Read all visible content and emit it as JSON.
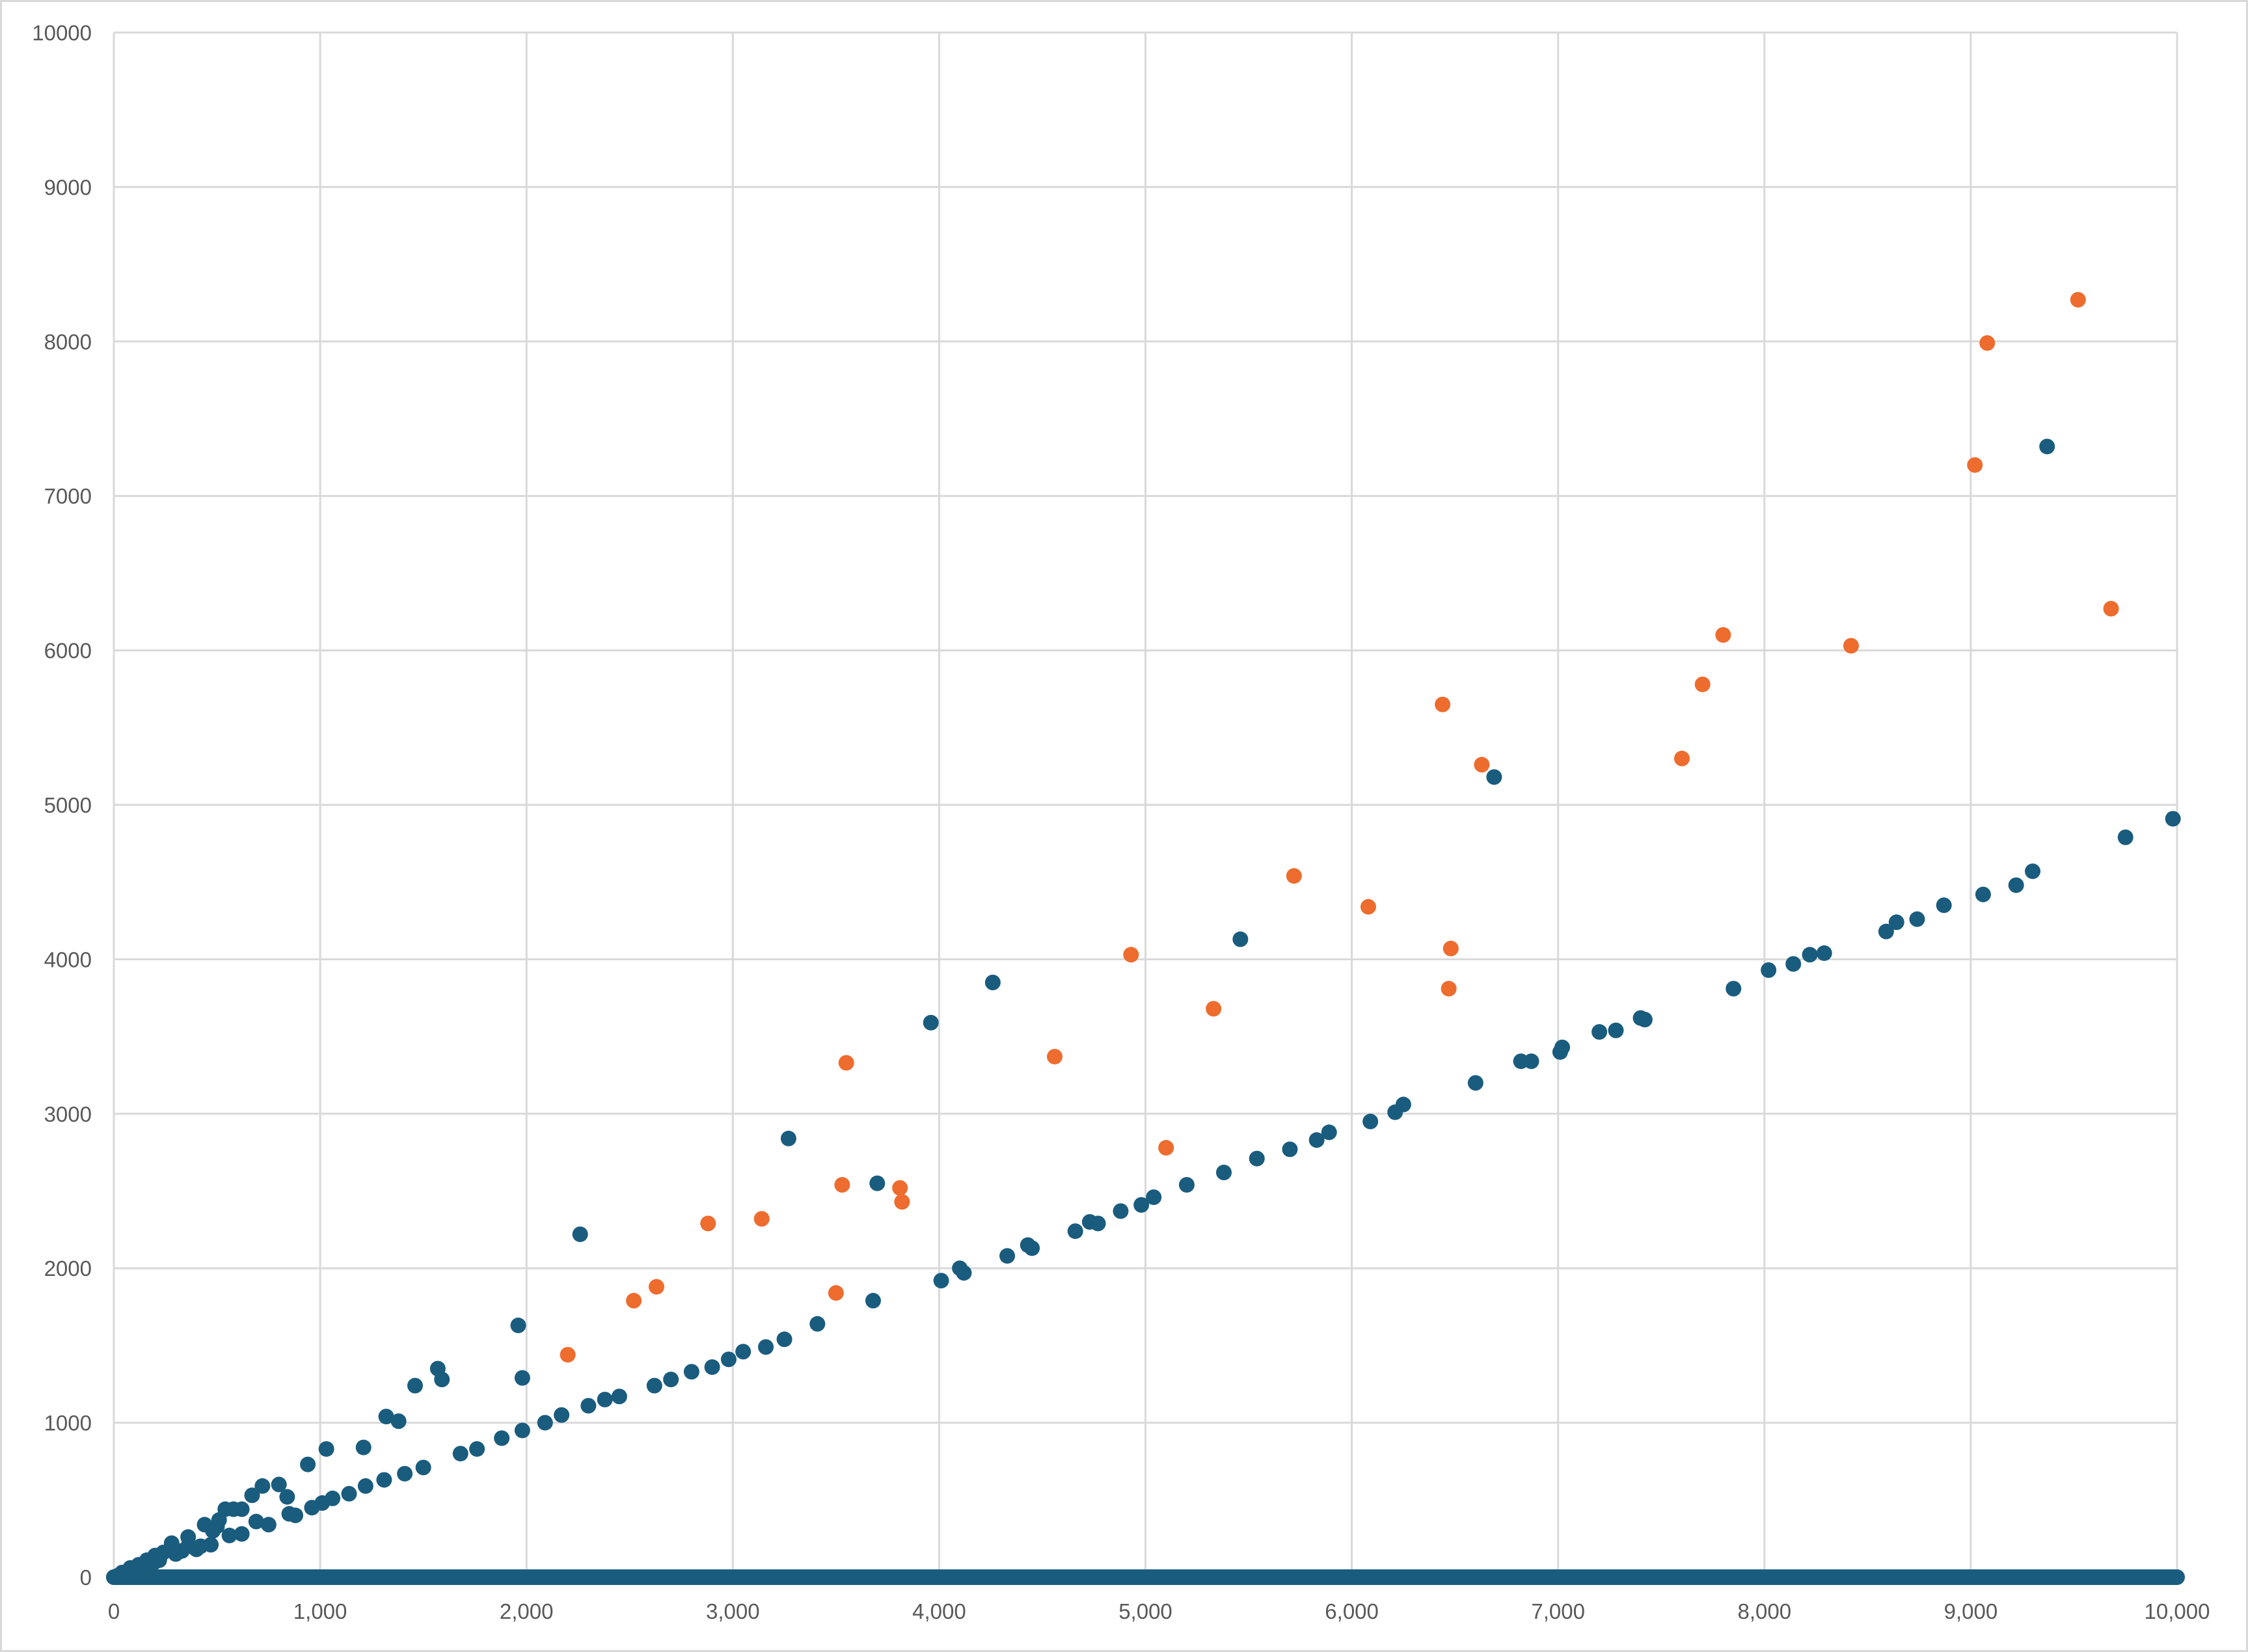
{
  "chart_data": {
    "type": "scatter",
    "title": "",
    "xlabel": "",
    "ylabel": "",
    "xlim": [
      0,
      10000
    ],
    "ylim": [
      0,
      10000
    ],
    "x_ticks": [
      "0",
      "1,000",
      "2,000",
      "3,000",
      "4,000",
      "5,000",
      "6,000",
      "7,000",
      "8,000",
      "9,000",
      "10,000"
    ],
    "y_ticks": [
      "0",
      "1000",
      "2000",
      "3000",
      "4000",
      "5000",
      "6000",
      "7000",
      "8000",
      "9000",
      "10000"
    ],
    "grid": true,
    "legend": "none",
    "series": [
      {
        "color": "#1a5c7e",
        "points": [
          [
            0,
            0
          ],
          [
            20,
            10
          ],
          [
            40,
            20
          ],
          [
            60,
            30
          ],
          [
            80,
            40
          ],
          [
            100,
            50
          ],
          [
            120,
            60
          ],
          [
            140,
            70
          ],
          [
            160,
            80
          ],
          [
            180,
            90
          ],
          [
            200,
            100
          ],
          [
            220,
            110
          ],
          [
            40,
            30
          ],
          [
            80,
            60
          ],
          [
            120,
            80
          ],
          [
            160,
            110
          ],
          [
            200,
            140
          ],
          [
            240,
            160
          ],
          [
            60,
            20
          ],
          [
            100,
            40
          ],
          [
            150,
            60
          ],
          [
            180,
            70
          ],
          [
            280,
            220
          ],
          [
            300,
            150
          ],
          [
            330,
            170
          ],
          [
            360,
            260
          ],
          [
            400,
            180
          ],
          [
            440,
            340
          ],
          [
            480,
            300
          ],
          [
            510,
            370
          ],
          [
            540,
            440
          ],
          [
            580,
            440
          ],
          [
            620,
            440
          ],
          [
            670,
            530
          ],
          [
            720,
            590
          ],
          [
            800,
            600
          ],
          [
            840,
            520
          ],
          [
            360,
            200
          ],
          [
            420,
            200
          ],
          [
            470,
            210
          ],
          [
            500,
            330
          ],
          [
            560,
            270
          ],
          [
            620,
            280
          ],
          [
            690,
            360
          ],
          [
            750,
            340
          ],
          [
            850,
            410
          ],
          [
            880,
            400
          ],
          [
            940,
            730
          ],
          [
            1030,
            830
          ],
          [
            1210,
            840
          ],
          [
            1320,
            1040
          ],
          [
            1380,
            1010
          ],
          [
            1460,
            1240
          ],
          [
            1570,
            1350
          ],
          [
            1590,
            1280
          ],
          [
            1960,
            1630
          ],
          [
            1980,
            1290
          ],
          [
            960,
            450
          ],
          [
            1010,
            480
          ],
          [
            1060,
            510
          ],
          [
            1140,
            540
          ],
          [
            1220,
            590
          ],
          [
            1310,
            630
          ],
          [
            1410,
            670
          ],
          [
            1500,
            710
          ],
          [
            1680,
            800
          ],
          [
            1760,
            830
          ],
          [
            1880,
            900
          ],
          [
            1980,
            950
          ],
          [
            2090,
            1000
          ],
          [
            2170,
            1050
          ],
          [
            2300,
            1110
          ],
          [
            2380,
            1150
          ],
          [
            2450,
            1170
          ],
          [
            2260,
            2220
          ],
          [
            2620,
            1240
          ],
          [
            2700,
            1280
          ],
          [
            2800,
            1330
          ],
          [
            2900,
            1360
          ],
          [
            2980,
            1410
          ],
          [
            3050,
            1460
          ],
          [
            3160,
            1490
          ],
          [
            3250,
            1540
          ],
          [
            3270,
            2840
          ],
          [
            3410,
            1640
          ],
          [
            3680,
            1790
          ],
          [
            3700,
            2550
          ],
          [
            3960,
            3590
          ],
          [
            4010,
            1920
          ],
          [
            4100,
            2000
          ],
          [
            4120,
            1970
          ],
          [
            4260,
            3850
          ],
          [
            4330,
            2080
          ],
          [
            4430,
            2150
          ],
          [
            4450,
            2130
          ],
          [
            4660,
            2240
          ],
          [
            4730,
            2300
          ],
          [
            4770,
            2290
          ],
          [
            4880,
            2370
          ],
          [
            4980,
            2410
          ],
          [
            5040,
            2460
          ],
          [
            5200,
            2540
          ],
          [
            5380,
            2620
          ],
          [
            5460,
            4130
          ],
          [
            5540,
            2710
          ],
          [
            5700,
            2770
          ],
          [
            5830,
            2830
          ],
          [
            5890,
            2880
          ],
          [
            6090,
            2950
          ],
          [
            6210,
            3010
          ],
          [
            6250,
            3060
          ],
          [
            6600,
            3200
          ],
          [
            6690,
            5180
          ],
          [
            6820,
            3340
          ],
          [
            6870,
            3340
          ],
          [
            7010,
            3400
          ],
          [
            7020,
            3430
          ],
          [
            7200,
            3530
          ],
          [
            7280,
            3540
          ],
          [
            7400,
            3620
          ],
          [
            7420,
            3610
          ],
          [
            7850,
            3810
          ],
          [
            8020,
            3930
          ],
          [
            8140,
            3970
          ],
          [
            8220,
            4030
          ],
          [
            8290,
            4040
          ],
          [
            8590,
            4180
          ],
          [
            8640,
            4240
          ],
          [
            8740,
            4260
          ],
          [
            8870,
            4350
          ],
          [
            9060,
            4420
          ],
          [
            9220,
            4480
          ],
          [
            9300,
            4570
          ],
          [
            9370,
            7320
          ],
          [
            9750,
            4790
          ],
          [
            9980,
            4910
          ]
        ]
      },
      {
        "color": "#ed6c2e",
        "points": [
          [
            2200,
            1440
          ],
          [
            2520,
            1790
          ],
          [
            2630,
            1880
          ],
          [
            2880,
            2290
          ],
          [
            3140,
            2320
          ],
          [
            3500,
            1840
          ],
          [
            3530,
            2540
          ],
          [
            3550,
            3330
          ],
          [
            3810,
            2520
          ],
          [
            3820,
            2430
          ],
          [
            4560,
            3370
          ],
          [
            4930,
            4030
          ],
          [
            5100,
            2780
          ],
          [
            5330,
            3680
          ],
          [
            5720,
            4540
          ],
          [
            6080,
            4340
          ],
          [
            6440,
            5650
          ],
          [
            6470,
            3810
          ],
          [
            6480,
            4070
          ],
          [
            6630,
            5260
          ],
          [
            7600,
            5300
          ],
          [
            7700,
            5780
          ],
          [
            7800,
            6100
          ],
          [
            8420,
            6030
          ],
          [
            9020,
            7200
          ],
          [
            9080,
            7990
          ],
          [
            9520,
            8270
          ],
          [
            9680,
            6270
          ]
        ]
      },
      {
        "color": "#1a5c7e",
        "baseline": true,
        "x_range": [
          0,
          10000
        ],
        "y": 0
      }
    ]
  }
}
